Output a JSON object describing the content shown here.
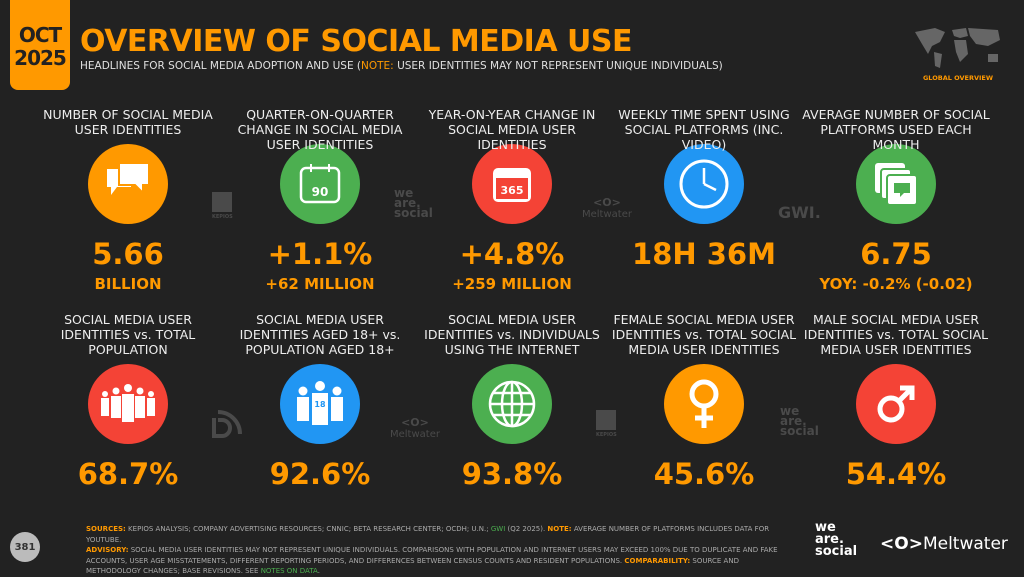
{
  "header": {
    "date_month": "OCT",
    "date_year": "2025",
    "title": "OVERVIEW OF SOCIAL MEDIA USE",
    "subtitle_pre": "HEADLINES FOR SOCIAL MEDIA ADOPTION AND USE (",
    "subtitle_note": "NOTE:",
    "subtitle_post": " USER IDENTITIES MAY NOT REPRESENT UNIQUE INDIVIDUALS)",
    "section": "GLOBAL OVERVIEW"
  },
  "colors": {
    "background": "#222222",
    "accent": "#ff9900",
    "green": "#4caf50",
    "red": "#f44336",
    "blue": "#2196f3"
  },
  "row1": [
    {
      "label": "NUMBER OF SOCIAL MEDIA USER IDENTITIES",
      "icon": "speech-bubbles-icon",
      "color": "#ff9900",
      "value": "5.66",
      "sub": "BILLION"
    },
    {
      "label": "QUARTER-ON-QUARTER CHANGE IN SOCIAL MEDIA USER IDENTITIES",
      "icon": "calendar-90-icon",
      "icon_text": "90",
      "color": "#4caf50",
      "value": "+1.1%",
      "sub": "+62 MILLION"
    },
    {
      "label": "YEAR-ON-YEAR CHANGE IN SOCIAL MEDIA USER IDENTITIES",
      "icon": "calendar-365-icon",
      "icon_text": "365",
      "color": "#f44336",
      "value": "+4.8%",
      "sub": "+259 MILLION"
    },
    {
      "label": "WEEKLY TIME SPENT USING SOCIAL PLATFORMS (INC. VIDEO)",
      "icon": "clock-icon",
      "color": "#2196f3",
      "value": "18H 36M",
      "sub": ""
    },
    {
      "label": "AVERAGE NUMBER OF SOCIAL PLATFORMS USED EACH MONTH",
      "icon": "stacked-windows-icon",
      "color": "#4caf50",
      "value": "6.75",
      "sub": "YOY: -0.2% (-0.02)"
    }
  ],
  "row2": [
    {
      "label": "SOCIAL MEDIA USER IDENTITIES vs. TOTAL POPULATION",
      "icon": "crowd-icon",
      "color": "#f44336",
      "value": "68.7%"
    },
    {
      "label": "SOCIAL MEDIA USER IDENTITIES AGED 18+ vs. POPULATION AGED 18+",
      "icon": "adults-18-icon",
      "icon_text": "18",
      "color": "#2196f3",
      "value": "92.6%"
    },
    {
      "label": "SOCIAL MEDIA USER IDENTITIES vs. INDIVIDUALS USING THE INTERNET",
      "icon": "globe-icon",
      "color": "#4caf50",
      "value": "93.8%"
    },
    {
      "label": "FEMALE SOCIAL MEDIA USER IDENTITIES vs. TOTAL SOCIAL MEDIA USER IDENTITIES",
      "icon": "female-icon",
      "color": "#ff9900",
      "value": "45.6%"
    },
    {
      "label": "MALE SOCIAL MEDIA USER IDENTITIES vs. TOTAL SOCIAL MEDIA USER IDENTITIES",
      "icon": "male-icon",
      "color": "#f44336",
      "value": "54.4%"
    }
  ],
  "source_logos": {
    "kepios": "KEPIOS",
    "was1": "we",
    "was2": "are.",
    "was3": "social",
    "meltwater": "Meltwater",
    "gwi": "GWI."
  },
  "footer": {
    "sources_label": "SOURCES:",
    "sources": " KEPIOS ANALYSIS; COMPANY ADVERTISING RESOURCES; CNNIC; BETA RESEARCH CENTER; OCDH; U.N.; ",
    "gwi": "GWI",
    "sources2": " (Q2 2025). ",
    "note_label": "NOTE:",
    "note": " AVERAGE NUMBER OF PLATFORMS INCLUDES DATA FOR YOUTUBE.",
    "advisory_label": "ADVISORY:",
    "advisory": " SOCIAL MEDIA USER IDENTITIES MAY NOT REPRESENT UNIQUE INDIVIDUALS. COMPARISONS WITH POPULATION AND INTERNET USERS MAY EXCEED 100% DUE TO DUPLICATE AND FAKE ACCOUNTS, USER AGE MISSTATEMENTS, DIFFERENT REPORTING PERIODS, AND DIFFERENCES BETWEEN CENSUS COUNTS AND RESIDENT POPULATIONS. ",
    "comparability_label": "COMPARABILITY:",
    "comparability": " SOURCE AND METHODOLOGY CHANGES; BASE REVISIONS. SEE ",
    "notes_link": "NOTES ON DATA",
    "end": ".",
    "page": "381",
    "brand_was": "we are. social",
    "brand_meltwater": "Meltwater"
  }
}
